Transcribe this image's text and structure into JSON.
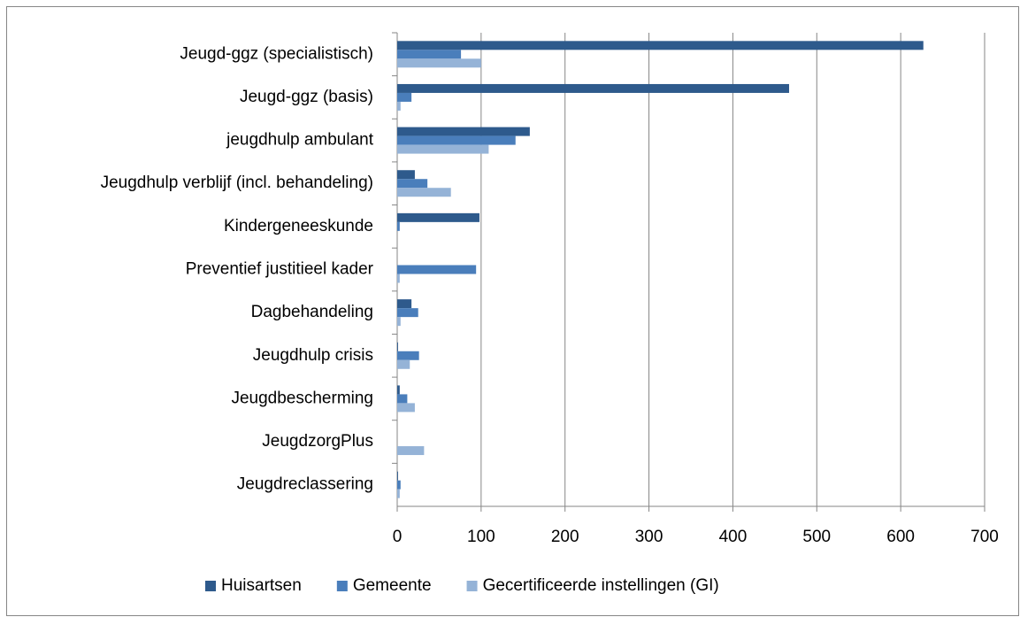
{
  "chart_data": {
    "type": "bar",
    "orientation": "horizontal",
    "categories": [
      "Jeugd-ggz (specialistisch)",
      "Jeugd-ggz (basis)",
      "jeugdhulp ambulant",
      "Jeugdhulp verblijf (incl. behandeling)",
      "Kindergeneeskunde",
      "Preventief justitieel kader",
      "Dagbehandeling",
      "Jeugdhulp crisis",
      "Jeugdbescherming",
      "JeugdzorgPlus",
      "Jeugdreclassering"
    ],
    "series": [
      {
        "name": "Huisartsen",
        "color": "#2e5a8c",
        "values": [
          627,
          467,
          158,
          21,
          98,
          0,
          17,
          1,
          3,
          0,
          1
        ]
      },
      {
        "name": "Gemeente",
        "color": "#4a7ebb",
        "values": [
          76,
          17,
          141,
          36,
          3,
          94,
          25,
          26,
          12,
          0,
          4
        ]
      },
      {
        "name": "Gecertificeerde instellingen (GI)",
        "color": "#95b3d7",
        "values": [
          100,
          4,
          109,
          64,
          0,
          3,
          4,
          15,
          21,
          32,
          3
        ]
      }
    ],
    "xlim": [
      0,
      700
    ],
    "xticks": [
      0,
      100,
      200,
      300,
      400,
      500,
      600,
      700
    ],
    "grid": true,
    "legend": "bottom"
  }
}
